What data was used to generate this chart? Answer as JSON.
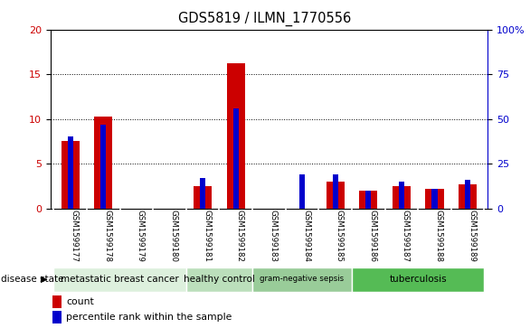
{
  "title": "GDS5819 / ILMN_1770556",
  "samples": [
    "GSM1599177",
    "GSM1599178",
    "GSM1599179",
    "GSM1599180",
    "GSM1599181",
    "GSM1599182",
    "GSM1599183",
    "GSM1599184",
    "GSM1599185",
    "GSM1599186",
    "GSM1599187",
    "GSM1599188",
    "GSM1599189"
  ],
  "count_values": [
    7.5,
    10.3,
    0.0,
    0.0,
    2.5,
    16.2,
    0.0,
    0.0,
    3.0,
    2.0,
    2.5,
    2.2,
    2.7
  ],
  "percentile_values": [
    40,
    47,
    0,
    0,
    17,
    56,
    0,
    19,
    19,
    10,
    15,
    11,
    16
  ],
  "count_color": "#cc0000",
  "percentile_color": "#0000cc",
  "ylim_left": [
    0,
    20
  ],
  "ylim_right": [
    0,
    100
  ],
  "yticks_left": [
    0,
    5,
    10,
    15,
    20
  ],
  "yticks_right": [
    0,
    25,
    50,
    75,
    100
  ],
  "ytick_labels_left": [
    "0",
    "5",
    "10",
    "15",
    "20"
  ],
  "ytick_labels_right": [
    "0",
    "25",
    "50",
    "75",
    "100%"
  ],
  "groups": [
    {
      "label": "metastatic breast cancer",
      "start": 0,
      "end": 4,
      "color": "#ddf0dd"
    },
    {
      "label": "healthy control",
      "start": 4,
      "end": 6,
      "color": "#bbdfbb"
    },
    {
      "label": "gram-negative sepsis",
      "start": 6,
      "end": 9,
      "color": "#99cc99"
    },
    {
      "label": "tuberculosis",
      "start": 9,
      "end": 13,
      "color": "#55bb55"
    }
  ],
  "disease_state_label": "disease state",
  "legend_count": "count",
  "legend_pct": "percentile rank within the sample",
  "bar_width": 0.55,
  "tick_area_bg": "#cccccc",
  "plot_bg": "#ffffff",
  "border_color": "#000000",
  "fig_width": 5.86,
  "fig_height": 3.63
}
